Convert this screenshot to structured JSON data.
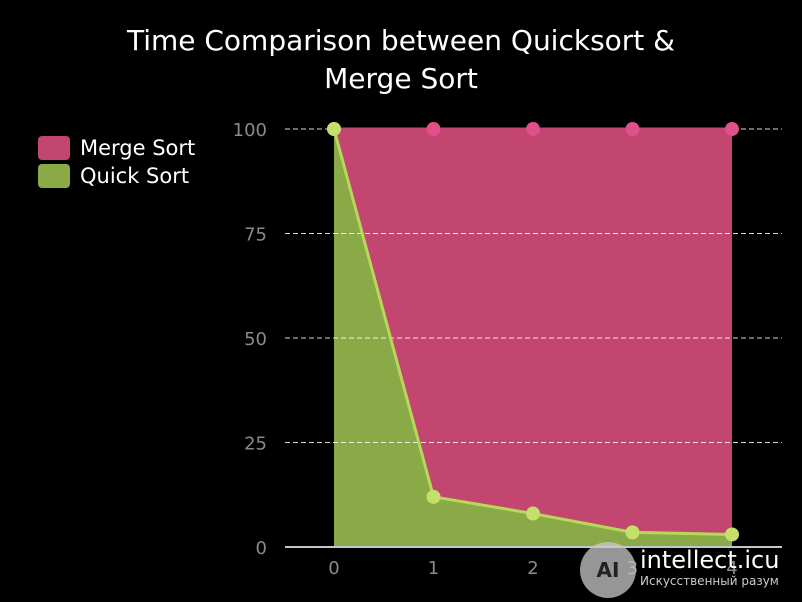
{
  "chart_data": {
    "type": "area",
    "title_line1": "Time Comparison between Quicksort &",
    "title_line2": "Merge Sort",
    "categories": [
      "0",
      "1",
      "2",
      "3",
      "4"
    ],
    "ylim": [
      0,
      100
    ],
    "yticks": [
      "0",
      "25",
      "50",
      "75",
      "100"
    ],
    "grid": true,
    "legend_position": "top-left",
    "series": [
      {
        "name": "Merge Sort",
        "values": [
          100,
          100,
          100,
          100,
          100
        ],
        "fill": "#c2466f",
        "line": "#c2466f",
        "point": "#e0508a"
      },
      {
        "name": "Quick Sort",
        "values": [
          100,
          12,
          8,
          3.5,
          3
        ],
        "fill": "#8aaa47",
        "line": "#b6d95a",
        "point": "#c4e06a"
      }
    ]
  },
  "watermark": {
    "logo": "AI",
    "text": "intellect.icu",
    "subtext": "Искусственный разум"
  }
}
